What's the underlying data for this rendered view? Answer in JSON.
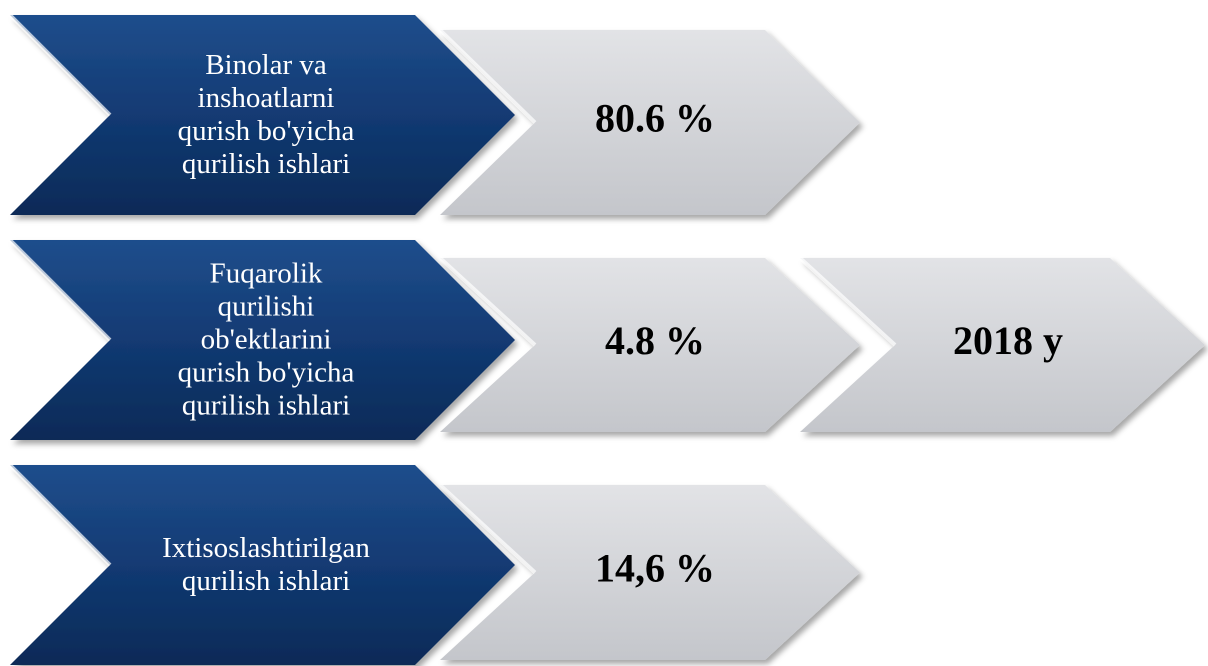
{
  "rows": [
    {
      "label": [
        "Binolar va",
        "inshoatlarni",
        "qurish bo'yicha",
        "qurilish ishlari"
      ],
      "value": "80.6 %"
    },
    {
      "label": [
        "Fuqarolik",
        "qurilishi",
        "ob'ektlarini",
        "qurish bo'yicha",
        "qurilish ishlari"
      ],
      "value": "4.8 %"
    },
    {
      "label": [
        "Ixtisoslashtirilgan",
        "qurilish ishlari"
      ],
      "value": "14,6 %"
    }
  ],
  "year": "2018 y"
}
